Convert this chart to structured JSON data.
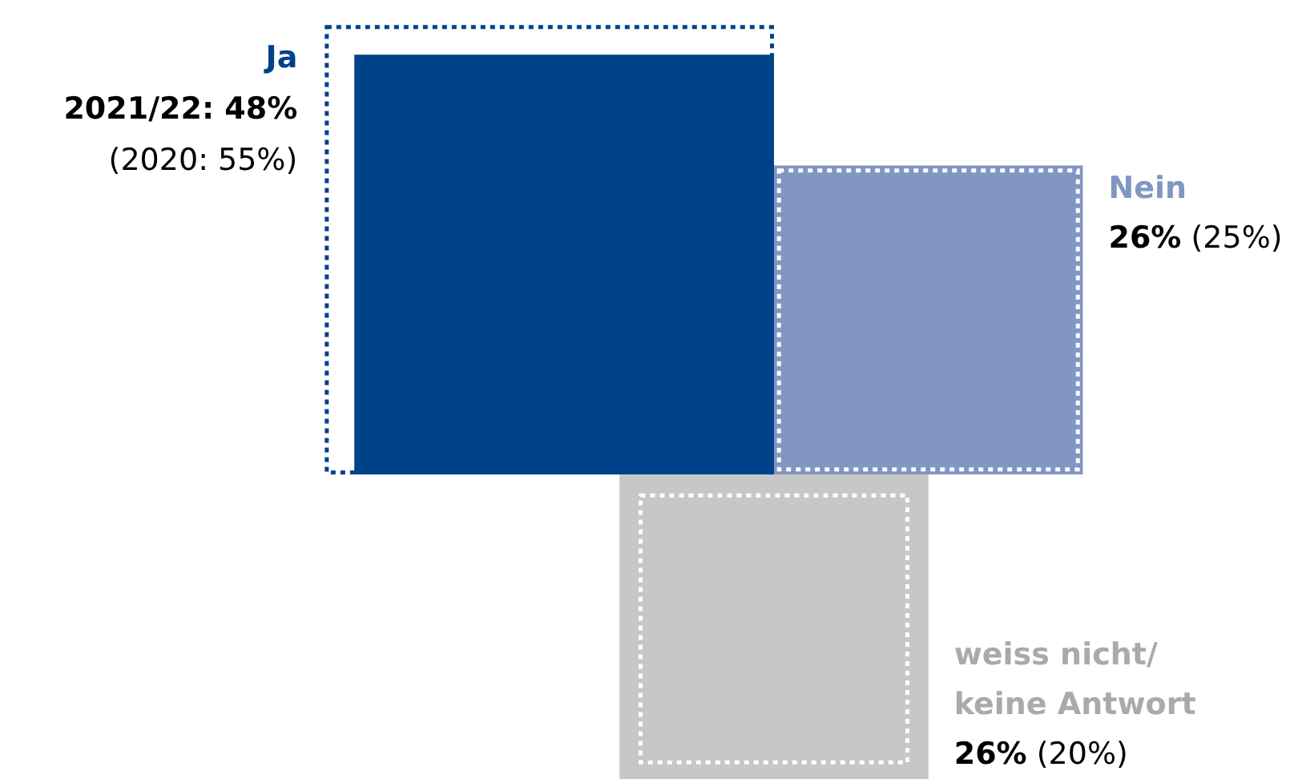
{
  "chart_data": {
    "type": "other",
    "categories": [
      "Ja",
      "Nein",
      "weiss nicht/ keine Antwort"
    ],
    "series": [
      {
        "values": [
          48,
          26,
          26
        ],
        "colors": [
          "#00428a",
          "#8196c2",
          "#c6c7c6"
        ],
        "value_labels": [
          "2021/22: 48%",
          "26%",
          "26%"
        ]
      },
      {
        "values": [
          55,
          25,
          20
        ],
        "colors": [
          "#00428a",
          "#ffffff",
          "#ffffff"
        ],
        "value_labels": [
          "(2020: 55%)",
          "(25%)",
          "(20%)"
        ],
        "line_style": "dotted"
      }
    ]
  }
}
